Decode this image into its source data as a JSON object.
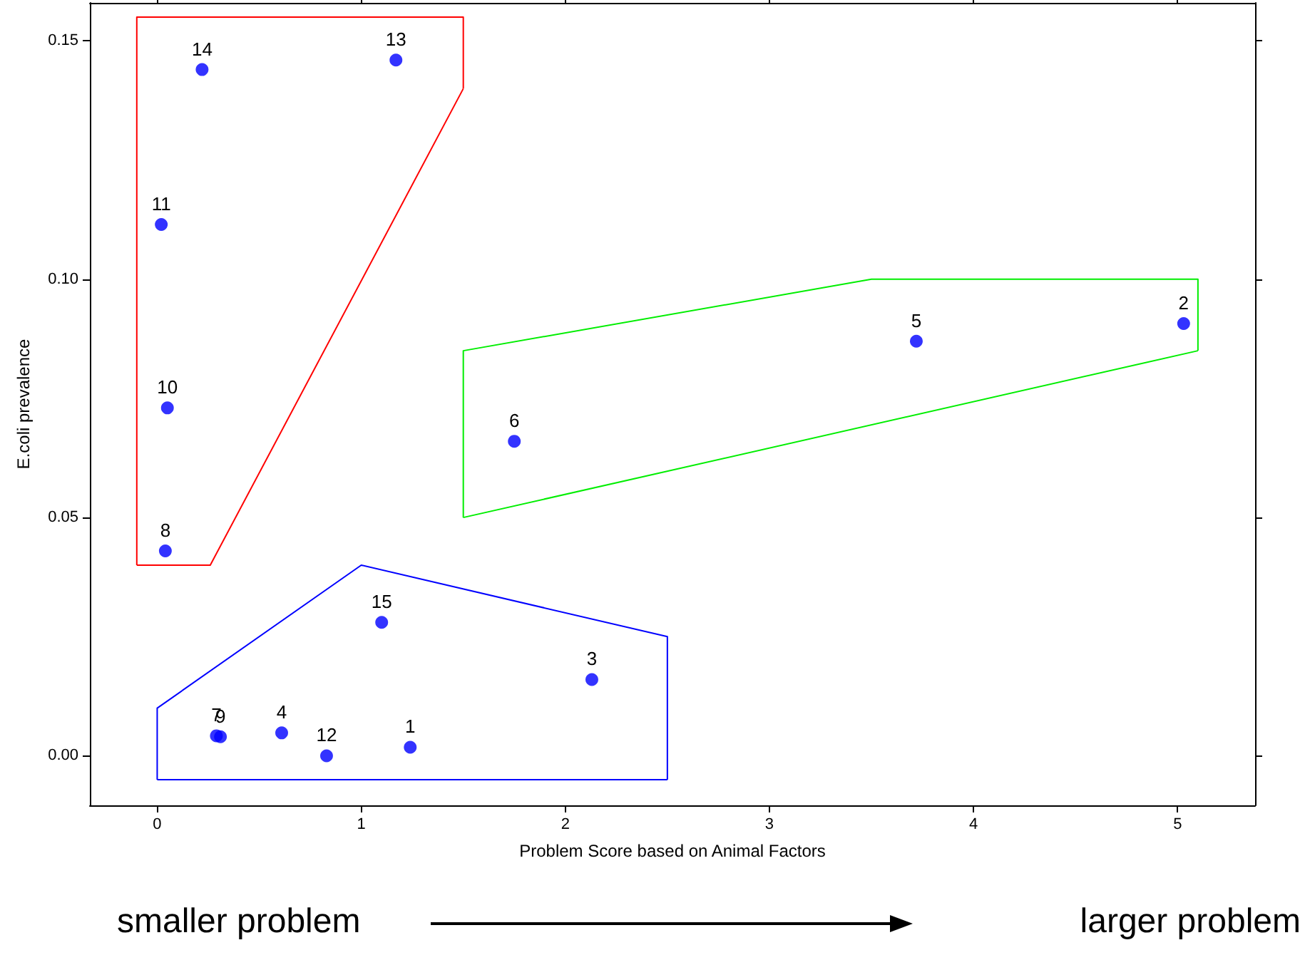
{
  "chart_data": {
    "type": "scatter",
    "xlabel": "Problem Score based on Animal Factors",
    "ylabel": "E.coli prevalence",
    "xlim": [
      -0.33,
      5.38
    ],
    "xticks": [
      0,
      1,
      2,
      3,
      4,
      5
    ],
    "ylim": [
      -0.0104,
      0.158
    ],
    "yticks": [
      {
        "value": 0,
        "label": "0.00"
      },
      {
        "value": 0.05,
        "label": "0.05"
      },
      {
        "value": 0.1,
        "label": "0.10"
      },
      {
        "value": 0.15,
        "label": "0.15"
      }
    ],
    "grid": false,
    "marker": "circle",
    "series": [
      {
        "color": "#0000ff",
        "x": [
          0.22,
          1.17,
          0.02,
          0.05,
          0.04,
          3.72,
          5.03,
          1.75,
          1.1,
          2.13,
          0.29,
          0.31,
          0.61,
          0.83,
          1.24
        ],
        "values": [
          0.144,
          0.146,
          0.1115,
          0.073,
          0.043,
          0.087,
          0.0907,
          0.066,
          0.028,
          0.016,
          0.0042,
          0.004,
          0.0048,
          0.0,
          0.0018
        ]
      },
      {
        "type": "line",
        "marker": "none",
        "color": "#ff0000",
        "x": [
          -0.1,
          -0.1,
          1.5,
          1.5
        ],
        "values": [
          0.04,
          0.155,
          0.155,
          0.14
        ]
      },
      {
        "type": "line",
        "marker": "none",
        "color": "#ff0000",
        "x": [
          -0.1,
          0.26,
          1.5
        ],
        "values": [
          0.04,
          0.04,
          0.14
        ]
      },
      {
        "type": "line",
        "marker": "none",
        "color": "#00ee00",
        "x": [
          1.5,
          1.5,
          3.5,
          5.1,
          5.1
        ],
        "values": [
          0.05,
          0.085,
          0.1,
          0.1,
          0.085
        ]
      },
      {
        "type": "line",
        "marker": "none",
        "color": "#00ee00",
        "x": [
          1.5,
          5.1
        ],
        "values": [
          0.05,
          0.085
        ]
      },
      {
        "type": "line",
        "marker": "none",
        "color": "#0000ff",
        "x": [
          0,
          0,
          1,
          2.5,
          2.5
        ],
        "values": [
          -0.005,
          0.01,
          0.04,
          0.025,
          -0.005
        ]
      },
      {
        "type": "line",
        "marker": "none",
        "color": "#0000ff",
        "x": [
          0,
          2.5
        ],
        "values": [
          -0.005,
          -0.005
        ]
      }
    ],
    "annotations": [
      {
        "text": "14",
        "x": 0.22,
        "y": 0.144
      },
      {
        "text": "13",
        "x": 1.17,
        "y": 0.146
      },
      {
        "text": "11",
        "x": 0.02,
        "y": 0.1115
      },
      {
        "text": "10",
        "x": 0.05,
        "y": 0.073
      },
      {
        "text": "8",
        "x": 0.04,
        "y": 0.043
      },
      {
        "text": "5",
        "x": 3.72,
        "y": 0.087
      },
      {
        "text": "2",
        "x": 5.03,
        "y": 0.0907
      },
      {
        "text": "6",
        "x": 1.75,
        "y": 0.066
      },
      {
        "text": "15",
        "x": 1.1,
        "y": 0.028
      },
      {
        "text": "3",
        "x": 2.13,
        "y": 0.016
      },
      {
        "text": "7",
        "x": 0.29,
        "y": 0.0042
      },
      {
        "text": "9",
        "x": 0.31,
        "y": 0.004
      },
      {
        "text": "4",
        "x": 0.61,
        "y": 0.0048
      },
      {
        "text": "12",
        "x": 0.83,
        "y": 0.0
      },
      {
        "text": "1",
        "x": 1.24,
        "y": 0.0018
      },
      "smaller problem",
      "larger problem"
    ]
  }
}
